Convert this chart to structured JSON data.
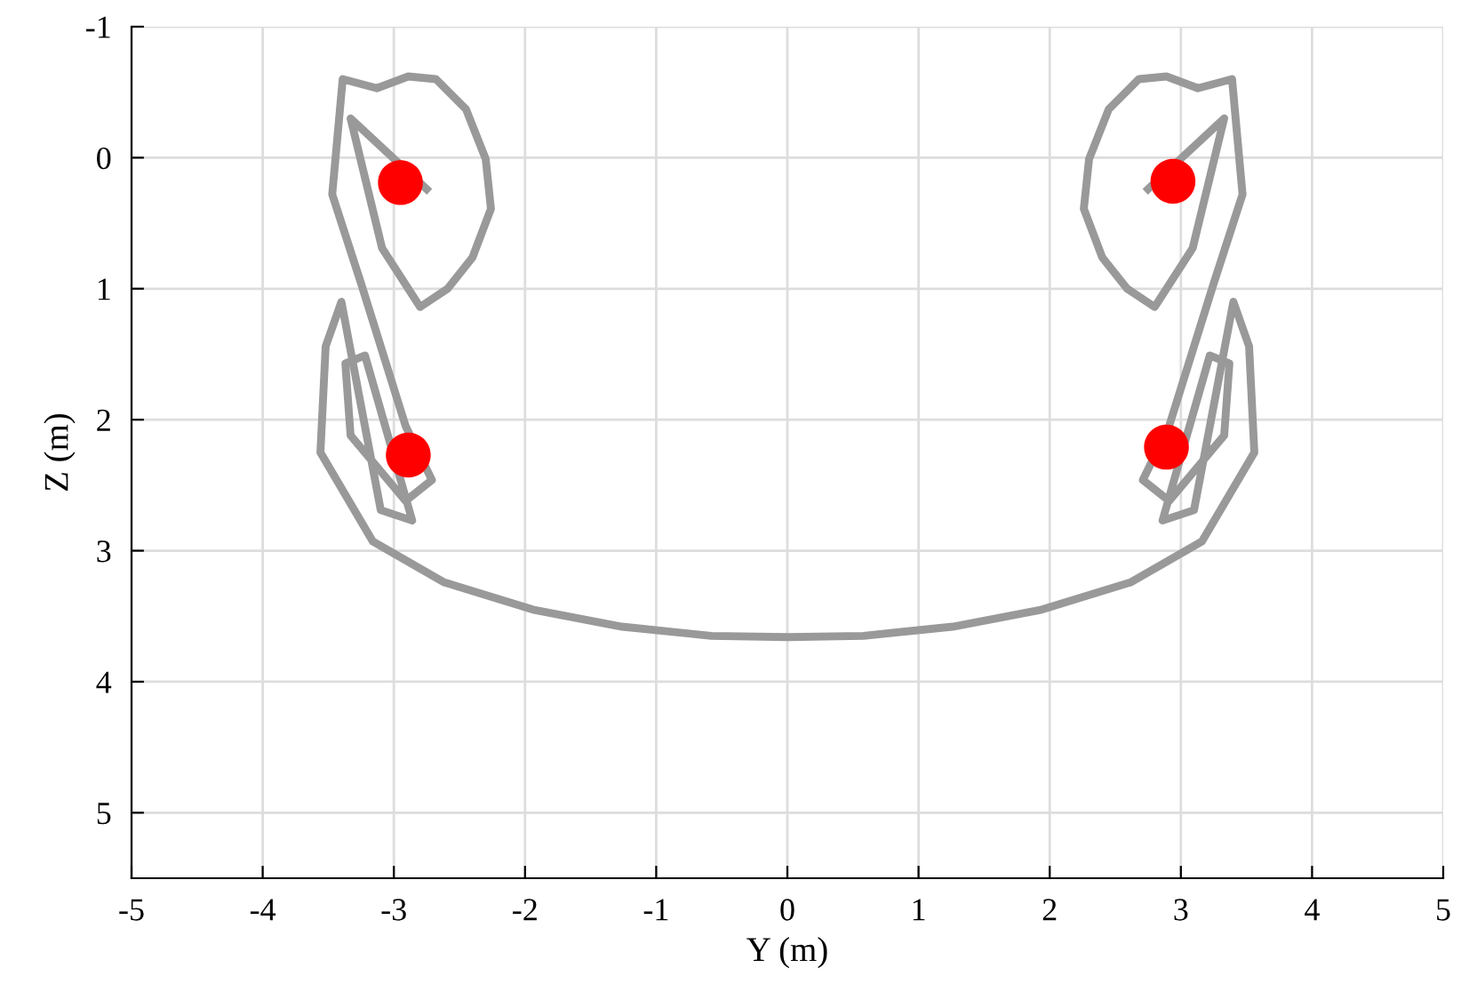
{
  "chart_data": {
    "type": "line",
    "xlabel": "Y (m)",
    "ylabel": "Z (m)",
    "xlim": [
      -5,
      5
    ],
    "ylim": [
      5.5,
      -1
    ],
    "xticks": [
      -5,
      -4,
      -3,
      -2,
      -1,
      0,
      1,
      2,
      3,
      4,
      5
    ],
    "yticks": [
      -1,
      0,
      1,
      2,
      3,
      4,
      5
    ],
    "grid": true,
    "series": [
      {
        "type": "line",
        "color": "#999999",
        "marker": "none",
        "line_style": "solid",
        "x": [
          -2.75,
          -3.33,
          -3.09,
          -2.8,
          -2.59,
          -2.4,
          -2.26,
          -2.3,
          -2.45,
          -2.68,
          -2.89,
          -3.13,
          -3.39,
          -3.47,
          -3.25,
          -2.91,
          -2.71,
          -2.91,
          -3.33,
          -3.37,
          -3.22,
          -2.86,
          -3.1,
          -3.4,
          -3.52,
          -3.56,
          -3.16,
          -2.62,
          -1.94,
          -1.26,
          -0.58,
          0,
          0.58,
          1.26,
          1.94,
          2.62,
          3.16,
          3.56,
          3.52,
          3.4,
          3.1,
          2.86,
          3.22,
          3.37,
          3.33,
          2.91,
          2.71,
          2.91,
          3.25,
          3.47,
          3.39,
          3.13,
          2.89,
          2.68,
          2.45,
          2.3,
          2.26,
          2.4,
          2.59,
          2.8,
          3.09,
          3.33,
          2.75
        ],
        "values": [
          0.24,
          -0.3,
          0.69,
          1.14,
          1.0,
          0.76,
          0.39,
          0.01,
          -0.37,
          -0.6,
          -0.62,
          -0.53,
          -0.6,
          0.28,
          0.96,
          2.05,
          2.46,
          2.62,
          2.12,
          1.57,
          1.51,
          2.77,
          2.69,
          1.1,
          1.44,
          2.25,
          2.93,
          3.24,
          3.45,
          3.58,
          3.65,
          3.66,
          3.65,
          3.58,
          3.45,
          3.24,
          2.93,
          2.25,
          1.44,
          1.1,
          2.69,
          2.77,
          1.51,
          1.57,
          2.12,
          2.62,
          2.46,
          2.05,
          0.96,
          0.28,
          -0.6,
          -0.53,
          -0.62,
          -0.6,
          -0.37,
          0.01,
          0.39,
          0.76,
          1.0,
          1.14,
          0.69,
          -0.3,
          0.24
        ]
      },
      {
        "type": "scatter",
        "color": "#ff0000",
        "marker": "circle",
        "x": [
          -2.95,
          -2.89,
          2.94,
          2.89
        ],
        "values": [
          0.19,
          2.27,
          0.18,
          2.21
        ]
      }
    ]
  }
}
